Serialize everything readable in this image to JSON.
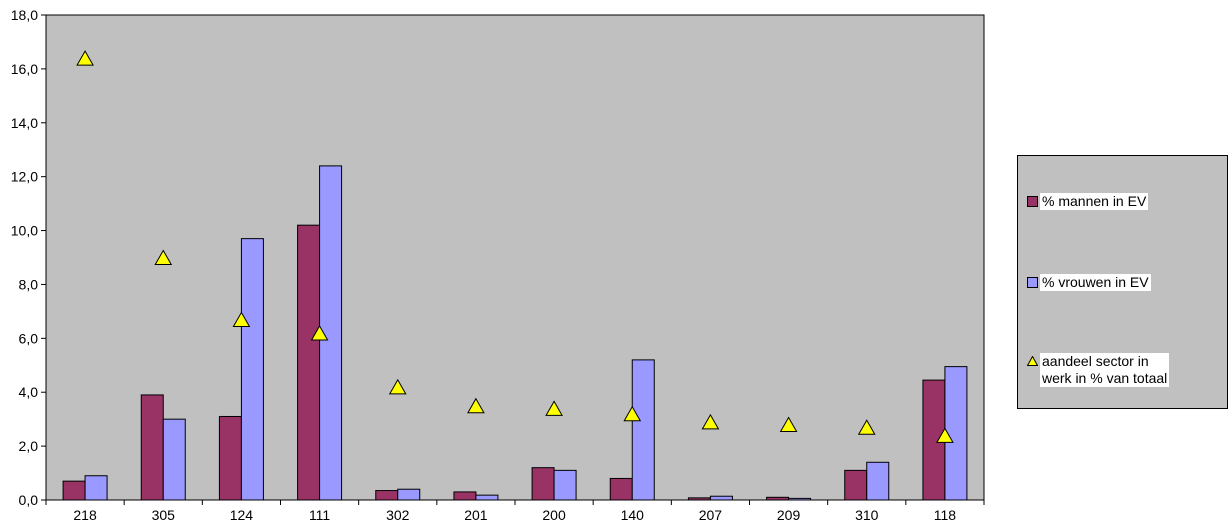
{
  "chart_data": {
    "type": "bar",
    "categories": [
      "218",
      "305",
      "124",
      "111",
      "302",
      "201",
      "200",
      "140",
      "207",
      "209",
      "310",
      "118"
    ],
    "series": [
      {
        "name": "% mannen in EV",
        "kind": "bar",
        "color": "#993366",
        "values": [
          0.7,
          3.9,
          3.1,
          10.2,
          0.35,
          0.3,
          1.2,
          0.8,
          0.08,
          0.1,
          1.1,
          4.45
        ]
      },
      {
        "name": "% vrouwen in EV",
        "kind": "bar",
        "color": "#9999ff",
        "values": [
          0.9,
          3.0,
          9.7,
          12.4,
          0.4,
          0.18,
          1.1,
          5.2,
          0.14,
          0.06,
          1.4,
          4.95
        ]
      },
      {
        "name": "aandeel sector in werk in % van totaal",
        "kind": "marker",
        "marker": "triangle",
        "color": "#ffff00",
        "values": [
          16.4,
          9.0,
          6.7,
          6.2,
          4.2,
          3.5,
          3.4,
          3.2,
          2.9,
          2.8,
          2.7,
          2.4
        ]
      }
    ],
    "ylim": [
      0,
      18
    ],
    "yticks": [
      "0,0",
      "2,0",
      "4,0",
      "6,0",
      "8,0",
      "10,0",
      "12,0",
      "14,0",
      "16,0",
      "18,0"
    ],
    "plot_background": "#c0c0c0",
    "grid": false,
    "legend_position": "right"
  },
  "legend": {
    "items": [
      {
        "label_lines": [
          "% mannen in EV"
        ],
        "color": "#993366",
        "swatch": "square"
      },
      {
        "label_lines": [
          "% vrouwen in EV"
        ],
        "color": "#9999ff",
        "swatch": "square"
      },
      {
        "label_lines": [
          "aandeel sector in",
          "werk in % van totaal"
        ],
        "color": "#ffff00",
        "swatch": "triangle"
      }
    ]
  }
}
